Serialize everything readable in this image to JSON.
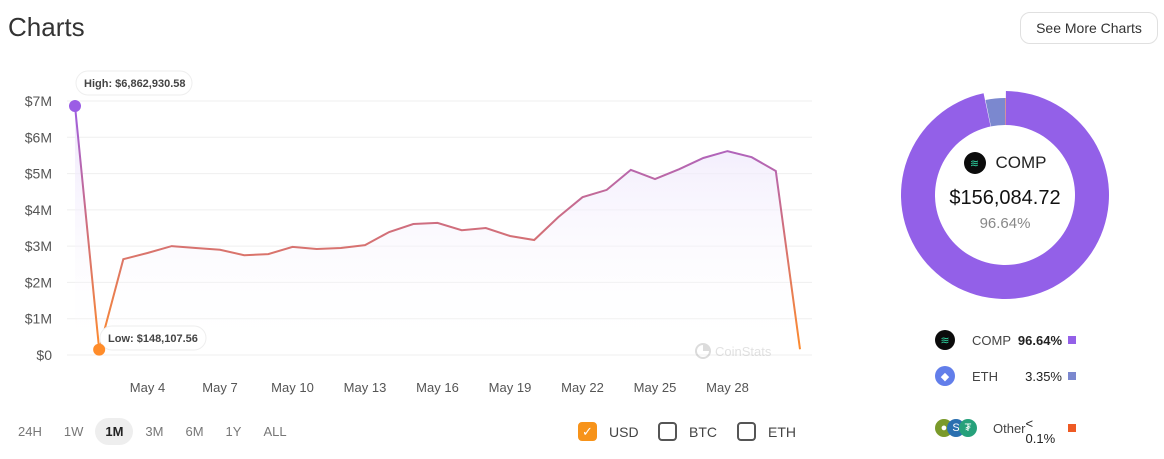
{
  "header": {
    "title": "Charts",
    "see_more_label": "See More Charts"
  },
  "chart_data": {
    "type": "area",
    "x": [
      "May 1",
      "May 2",
      "May 3",
      "May 4",
      "May 5",
      "May 6",
      "May 7",
      "May 8",
      "May 9",
      "May 10",
      "May 11",
      "May 12",
      "May 13",
      "May 14",
      "May 15",
      "May 16",
      "May 17",
      "May 18",
      "May 19",
      "May 20",
      "May 21",
      "May 22",
      "May 23",
      "May 24",
      "May 25",
      "May 26",
      "May 27",
      "May 28",
      "May 29",
      "May 30",
      "May 31"
    ],
    "values": [
      6862930.58,
      148107.56,
      2640000,
      2810000,
      3000000,
      2950000,
      2900000,
      2750000,
      2780000,
      2980000,
      2920000,
      2950000,
      3030000,
      3390000,
      3610000,
      3640000,
      3440000,
      3500000,
      3280000,
      3170000,
      3800000,
      4350000,
      4550000,
      5100000,
      4850000,
      5120000,
      5430000,
      5620000,
      5450000,
      5070000,
      160000
    ],
    "ylim": [
      0,
      7000000
    ],
    "y_ticks": [
      "$0",
      "$1M",
      "$2M",
      "$3M",
      "$4M",
      "$5M",
      "$6M",
      "$7M"
    ],
    "x_ticks": [
      {
        "label": "May 4",
        "day": 4
      },
      {
        "label": "May 7",
        "day": 7
      },
      {
        "label": "May 10",
        "day": 10
      },
      {
        "label": "May 13",
        "day": 13
      },
      {
        "label": "May 16",
        "day": 16
      },
      {
        "label": "May 19",
        "day": 19
      },
      {
        "label": "May 22",
        "day": 22
      },
      {
        "label": "May 25",
        "day": 25
      },
      {
        "label": "May 28",
        "day": 28
      }
    ],
    "grid": true,
    "high_label": "High: $6,862,930.58",
    "low_label": "Low: $148,107.56",
    "watermark": "CoinStats",
    "colors": {
      "high": "#9b5de5",
      "low": "#ff8c2a"
    }
  },
  "ranges": [
    "24H",
    "1W",
    "1M",
    "3M",
    "6M",
    "1Y",
    "ALL"
  ],
  "active_range": "1M",
  "currencies": [
    {
      "label": "USD",
      "checked": true
    },
    {
      "label": "BTC",
      "checked": false
    },
    {
      "label": "ETH",
      "checked": false
    }
  ],
  "donut": {
    "center_symbol": "COMP",
    "center_value": "$156,084.72",
    "center_percent": "96.64%",
    "slices": [
      {
        "name": "COMP",
        "percent": 96.64,
        "label": "96.64%",
        "color": "#9360e8"
      },
      {
        "name": "ETH",
        "percent": 3.35,
        "label": "3.35%",
        "color": "#7b88cf"
      },
      {
        "name": "Other",
        "percent": 0.01,
        "label": "< 0.1%",
        "color": "#ee5a24"
      }
    ]
  }
}
